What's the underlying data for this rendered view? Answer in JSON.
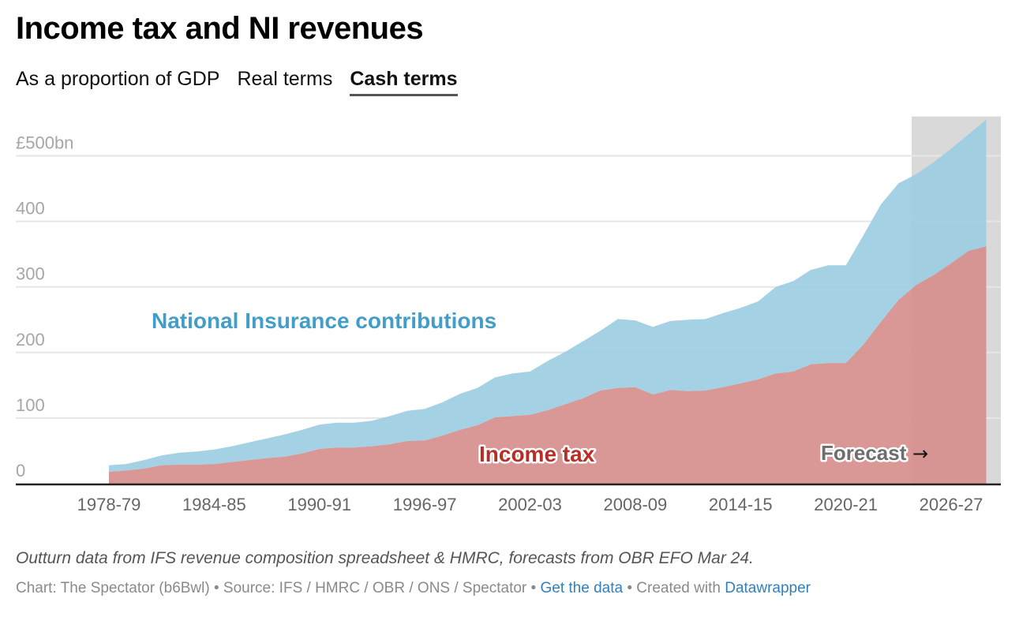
{
  "header": {
    "title": "Income tax and NI revenues",
    "tabs": [
      {
        "label": "As a proportion of GDP",
        "active": false
      },
      {
        "label": "Real terms",
        "active": false
      },
      {
        "label": "Cash terms",
        "active": true
      }
    ]
  },
  "colors": {
    "income_tax": "#d68f8d",
    "ni": "#9ccee2",
    "income_tax_label": "#b92d27",
    "ni_label": "#429ec8",
    "forecast_shade": "#d9d9d9",
    "link": "#2f80bd"
  },
  "chart_data": {
    "type": "area",
    "stacked": true,
    "title": "Income tax and NI revenues",
    "xlabel": "",
    "ylabel": "",
    "y_unit_label": "£500bn",
    "ylim": [
      0,
      560
    ],
    "y_ticks": [
      0,
      100,
      200,
      300,
      400,
      500
    ],
    "y_tick_labels": [
      "0",
      "100",
      "200",
      "300",
      "400",
      "£500bn"
    ],
    "grid": true,
    "x": [
      "1978-79",
      "1979-80",
      "1980-81",
      "1981-82",
      "1982-83",
      "1983-84",
      "1984-85",
      "1985-86",
      "1986-87",
      "1987-88",
      "1988-89",
      "1989-90",
      "1990-91",
      "1991-92",
      "1992-93",
      "1993-94",
      "1994-95",
      "1995-96",
      "1996-97",
      "1997-98",
      "1998-99",
      "1999-00",
      "2000-01",
      "2001-02",
      "2002-03",
      "2003-04",
      "2004-05",
      "2005-06",
      "2006-07",
      "2007-08",
      "2008-09",
      "2009-10",
      "2010-11",
      "2011-12",
      "2012-13",
      "2013-14",
      "2014-15",
      "2015-16",
      "2016-17",
      "2017-18",
      "2018-19",
      "2019-20",
      "2020-21",
      "2021-22",
      "2022-23",
      "2023-24",
      "2024-25",
      "2025-26",
      "2026-27",
      "2027-28",
      "2028-29"
    ],
    "x_tick_labels": [
      "1978-79",
      "1984-85",
      "1990-91",
      "1996-97",
      "2002-03",
      "2008-09",
      "2014-15",
      "2020-21",
      "2026-27"
    ],
    "series": [
      {
        "name": "Income tax",
        "values": [
          18,
          20,
          23,
          28,
          29,
          29,
          30,
          33,
          36,
          39,
          41,
          46,
          53,
          55,
          55,
          57,
          60,
          65,
          66,
          73,
          82,
          89,
          101,
          103,
          105,
          112,
          121,
          130,
          142,
          146,
          147,
          136,
          143,
          141,
          142,
          147,
          153,
          159,
          168,
          171,
          182,
          184,
          184,
          212,
          247,
          280,
          303,
          318,
          336,
          355,
          362
        ]
      },
      {
        "name": "National Insurance contributions",
        "values": [
          10,
          10,
          13,
          15,
          18,
          20,
          22,
          24,
          27,
          30,
          34,
          36,
          37,
          38,
          38,
          39,
          43,
          46,
          48,
          51,
          55,
          57,
          61,
          65,
          66,
          75,
          80,
          87,
          91,
          105,
          102,
          103,
          105,
          109,
          109,
          113,
          115,
          119,
          132,
          138,
          144,
          149,
          149,
          167,
          179,
          178,
          169,
          172,
          175,
          178,
          193
        ]
      }
    ],
    "annotations": [
      {
        "text": "National Insurance contributions",
        "series": "National Insurance contributions"
      },
      {
        "text": "Income tax",
        "series": "Income tax"
      },
      {
        "text": "Forecast",
        "arrow": "→"
      }
    ],
    "forecast_range": [
      "2024-25",
      "2028-29"
    ],
    "legend": "inline labels"
  },
  "notes": "Outturn data from IFS revenue composition spreadsheet & HMRC, forecasts from OBR EFO Mar 24.",
  "footer": {
    "chart_credit": "Chart: The Spectator (b6Bwl)",
    "separator": " • ",
    "source": "Source: IFS / HMRC / OBR / ONS / Spectator",
    "get_data_link": "Get the data",
    "created_with": "Created with",
    "datawrapper_link": "Datawrapper"
  }
}
